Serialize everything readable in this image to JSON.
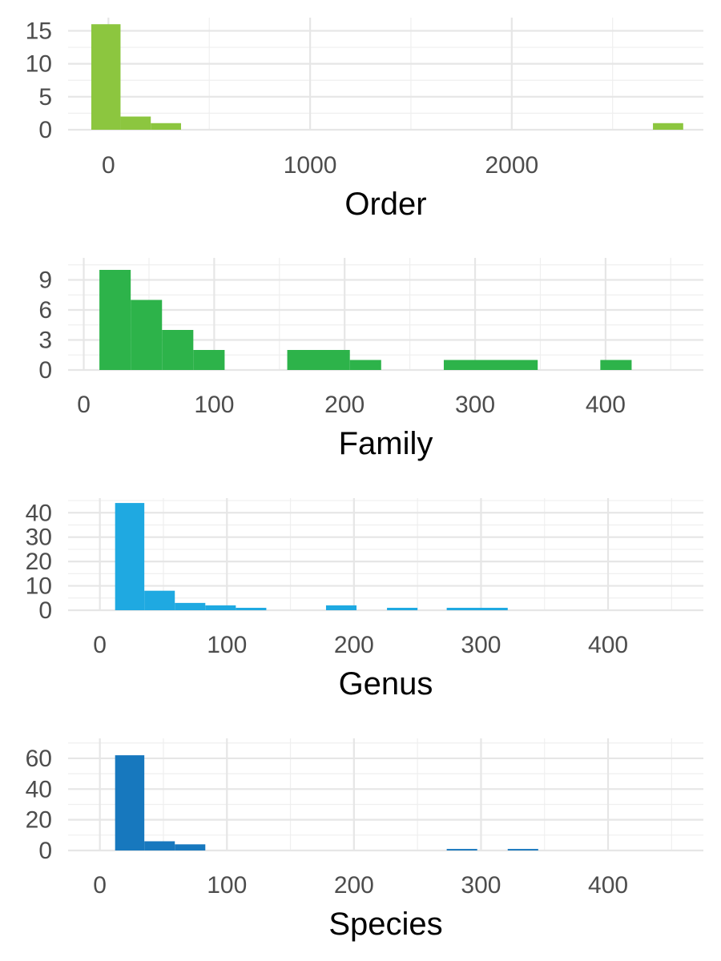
{
  "chart_data": [
    {
      "type": "bar",
      "xlabel": "Order",
      "color": "#8CC63F",
      "xlim": [
        -200,
        2950
      ],
      "ylim": [
        0,
        17
      ],
      "xticks": [
        0,
        1000,
        2000
      ],
      "xtick_labels": [
        "0",
        "1000",
        "2000"
      ],
      "yticks": [
        0,
        5,
        10,
        15
      ],
      "ytick_labels": [
        "0",
        "5",
        "10",
        "15"
      ],
      "grid": true,
      "bins": [
        {
          "x0": -85,
          "x1": 60,
          "count": 16
        },
        {
          "x0": 60,
          "x1": 210,
          "count": 2
        },
        {
          "x0": 210,
          "x1": 360,
          "count": 1
        },
        {
          "x0": 2700,
          "x1": 2850,
          "count": 1
        }
      ]
    },
    {
      "type": "bar",
      "xlabel": "Family",
      "color": "#2DB34A",
      "xlim": [
        -12,
        475
      ],
      "ylim": [
        0,
        11.2
      ],
      "xticks": [
        0,
        100,
        200,
        300,
        400
      ],
      "xtick_labels": [
        "0",
        "100",
        "200",
        "300",
        "400"
      ],
      "yticks": [
        0,
        3,
        6,
        9
      ],
      "ytick_labels": [
        "0",
        "3",
        "6",
        "9"
      ],
      "grid": true,
      "bins": [
        {
          "x0": 12,
          "x1": 36,
          "count": 10
        },
        {
          "x0": 36,
          "x1": 60,
          "count": 7
        },
        {
          "x0": 60,
          "x1": 84,
          "count": 4
        },
        {
          "x0": 84,
          "x1": 108,
          "count": 2
        },
        {
          "x0": 156,
          "x1": 204,
          "count": 2
        },
        {
          "x0": 204,
          "x1": 228,
          "count": 1
        },
        {
          "x0": 276,
          "x1": 348,
          "count": 1
        },
        {
          "x0": 396,
          "x1": 420,
          "count": 1
        }
      ]
    },
    {
      "type": "bar",
      "xlabel": "Genus",
      "color": "#1FA9E1",
      "xlim": [
        -25,
        475
      ],
      "ylim": [
        0,
        46
      ],
      "xticks": [
        0,
        100,
        200,
        300,
        400
      ],
      "xtick_labels": [
        "0",
        "100",
        "200",
        "300",
        "400"
      ],
      "yticks": [
        0,
        10,
        20,
        30,
        40
      ],
      "ytick_labels": [
        "0",
        "10",
        "20",
        "30",
        "40"
      ],
      "grid": true,
      "bins": [
        {
          "x0": 12,
          "x1": 35,
          "count": 44
        },
        {
          "x0": 35,
          "x1": 59,
          "count": 8
        },
        {
          "x0": 59,
          "x1": 83,
          "count": 3
        },
        {
          "x0": 83,
          "x1": 107,
          "count": 2
        },
        {
          "x0": 107,
          "x1": 131,
          "count": 1
        },
        {
          "x0": 178,
          "x1": 202,
          "count": 2
        },
        {
          "x0": 226,
          "x1": 250,
          "count": 1
        },
        {
          "x0": 273,
          "x1": 321,
          "count": 1
        }
      ]
    },
    {
      "type": "bar",
      "xlabel": "Species",
      "color": "#1778BE",
      "xlim": [
        -25,
        475
      ],
      "ylim": [
        0,
        73
      ],
      "xticks": [
        0,
        100,
        200,
        300,
        400
      ],
      "xtick_labels": [
        "0",
        "100",
        "200",
        "300",
        "400"
      ],
      "yticks": [
        0,
        20,
        40,
        60
      ],
      "ytick_labels": [
        "0",
        "20",
        "40",
        "60"
      ],
      "grid": true,
      "bins": [
        {
          "x0": 12,
          "x1": 35,
          "count": 62
        },
        {
          "x0": 35,
          "x1": 59,
          "count": 6
        },
        {
          "x0": 59,
          "x1": 83,
          "count": 4
        },
        {
          "x0": 273,
          "x1": 297,
          "count": 1
        },
        {
          "x0": 321,
          "x1": 345,
          "count": 1
        }
      ]
    }
  ]
}
